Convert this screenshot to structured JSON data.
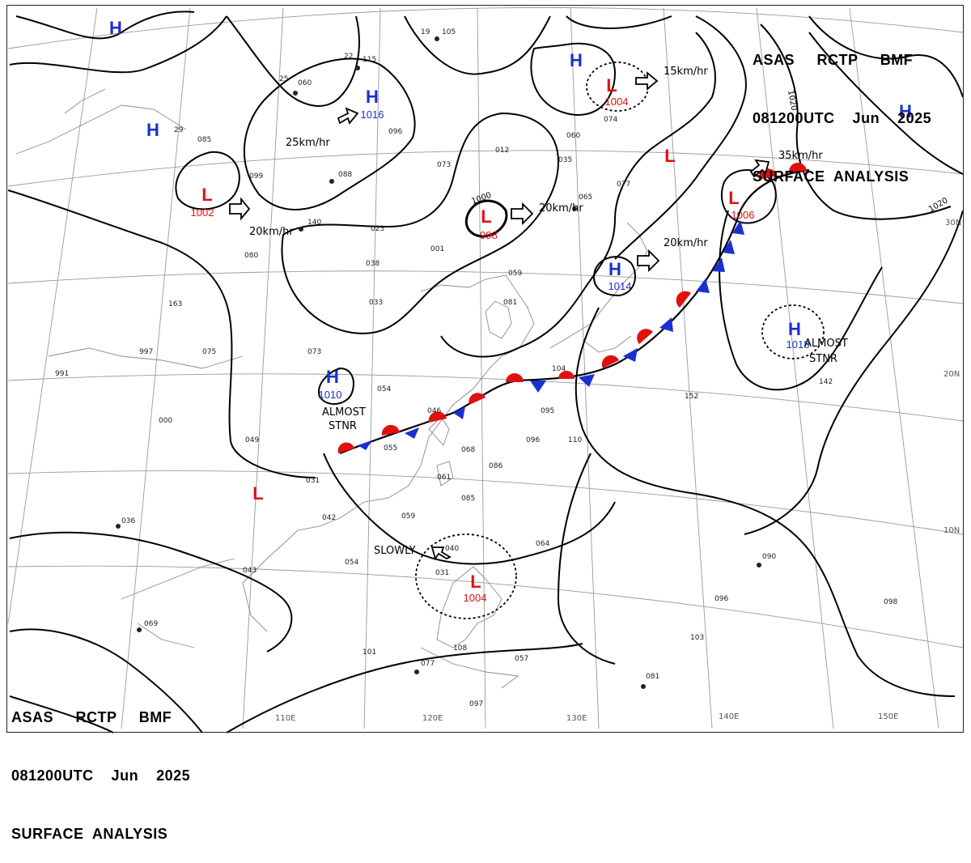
{
  "header": {
    "line1": "ASAS     RCTP     BMF",
    "line2": "081200UTC    Jun    2025",
    "line3": "SURFACE  ANALYSIS"
  },
  "colors": {
    "high": "#1a2fd0",
    "low": "#e01010",
    "line": "#000000",
    "grid": "#9a9a9a"
  },
  "pressure_centers": [
    {
      "type": "H",
      "value": "1016"
    },
    {
      "type": "H",
      "value": "1010"
    },
    {
      "type": "H",
      "value": "1014"
    },
    {
      "type": "H",
      "value": "1018"
    },
    {
      "type": "H",
      "value": ""
    },
    {
      "type": "H",
      "value": ""
    },
    {
      "type": "H",
      "value": ""
    },
    {
      "type": "H",
      "value": ""
    },
    {
      "type": "L",
      "value": "1002"
    },
    {
      "type": "L",
      "value": "998"
    },
    {
      "type": "L",
      "value": "1004"
    },
    {
      "type": "L",
      "value": "1006"
    },
    {
      "type": "L",
      "value": "1004"
    },
    {
      "type": "L",
      "value": ""
    },
    {
      "type": "L",
      "value": ""
    }
  ],
  "movements": [
    "25km/hr",
    "20km/hr",
    "20km/hr",
    "20km/hr",
    "15km/hr",
    "35km/hr",
    "SLOWLY"
  ],
  "stationary_notes": [
    "ALMOST",
    "STNR",
    "ALMOST",
    "STNR"
  ],
  "isobar_labels": [
    "1000",
    "1020",
    "1020"
  ],
  "lon_labels": [
    "110E",
    "120E",
    "130E",
    "140E",
    "150E"
  ],
  "lat_labels": [
    "30N",
    "20N",
    "10N"
  ],
  "station_samples": [
    "19",
    "105",
    "22",
    "115",
    "25",
    "060",
    "29",
    "085",
    "099",
    "088",
    "096",
    "012",
    "073",
    "035",
    "060",
    "074",
    "140",
    "023",
    "080",
    "038",
    "001",
    "059",
    "033",
    "081",
    "163",
    "997",
    "075",
    "073",
    "054",
    "046",
    "055",
    "049",
    "031",
    "042",
    "059",
    "068",
    "061",
    "085",
    "086",
    "095",
    "096",
    "110",
    "104",
    "152",
    "142",
    "090",
    "096",
    "098",
    "103",
    "081",
    "101",
    "077",
    "108",
    "097",
    "057",
    "064",
    "040",
    "031",
    "036",
    "043",
    "054",
    "069",
    "000",
    "991",
    "065",
    "077"
  ]
}
